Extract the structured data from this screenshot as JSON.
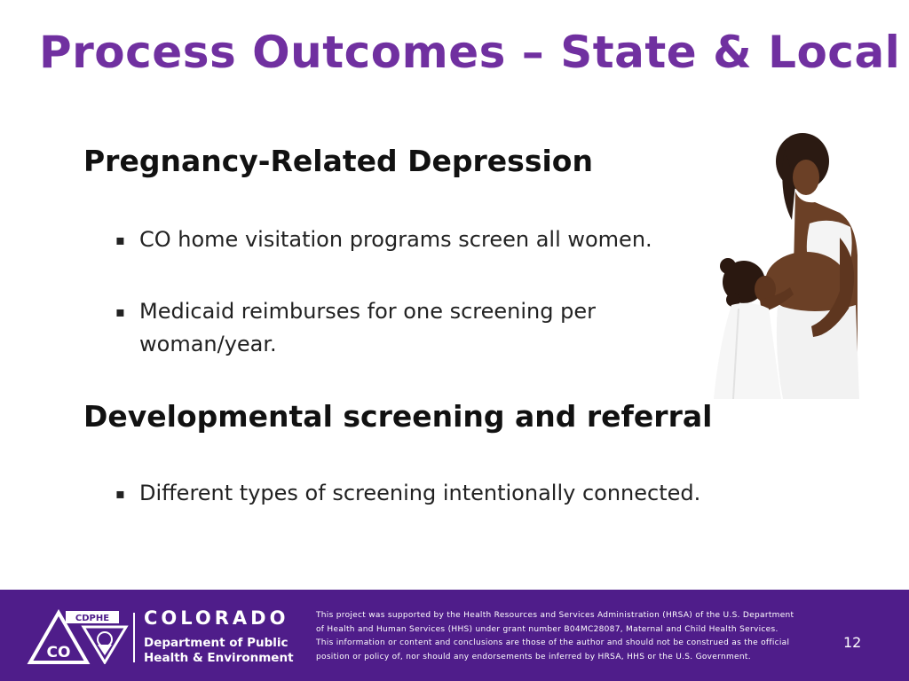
{
  "slide": {
    "title": "Process Outcomes – State & Local"
  },
  "sections": [
    {
      "heading": "Pregnancy-Related Depression",
      "bullets": [
        "CO home visitation programs screen all women.",
        "Medicaid reimburses for one screening per woman/year."
      ]
    },
    {
      "heading": "Developmental screening and referral",
      "bullets": [
        "Different types of screening intentionally connected."
      ]
    }
  ],
  "bullet_marker": "▪",
  "footer": {
    "logo_acronym": "CDPHE",
    "logo_letters": "CO",
    "logo_state": "COLORADO",
    "logo_dept_line1": "Department of Public",
    "logo_dept_line2": "Health & Environment",
    "disclaimer": "This project was supported by the Health Resources and Services Administration (HRSA) of the U.S. Department of Health and Human Services (HHS) under grant number B04MC28087, Maternal and Child Health Services. This information or content and conclusions are those of the author and should not be construed as the official position or policy of, nor should any endorsements be inferred by HRSA, HHS or the U.S. Government.",
    "page_number": "12"
  },
  "colors": {
    "title": "#7030a0",
    "footer_bg": "#4f1d8a",
    "text": "#1a1a1a"
  }
}
